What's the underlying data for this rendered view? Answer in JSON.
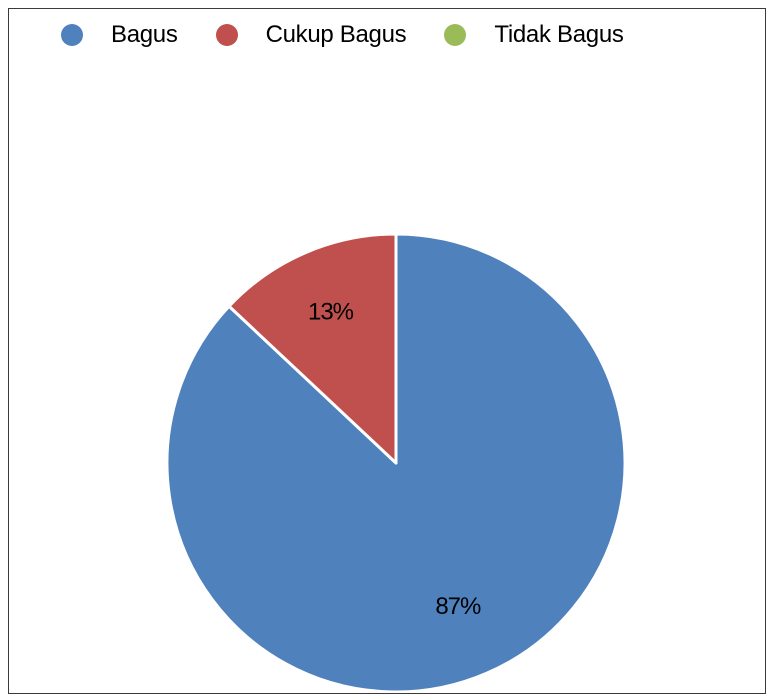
{
  "chart_data": {
    "type": "pie",
    "title": "",
    "legend_position": "top",
    "series": [
      {
        "name": "Bagus",
        "value": 87,
        "label": "87%",
        "color": "#4F81BD"
      },
      {
        "name": "Cukup Bagus",
        "value": 13,
        "label": "13%",
        "color": "#C0504D"
      },
      {
        "name": "Tidak Bagus",
        "value": 0,
        "label": "",
        "color": "#9BBB59"
      }
    ]
  }
}
